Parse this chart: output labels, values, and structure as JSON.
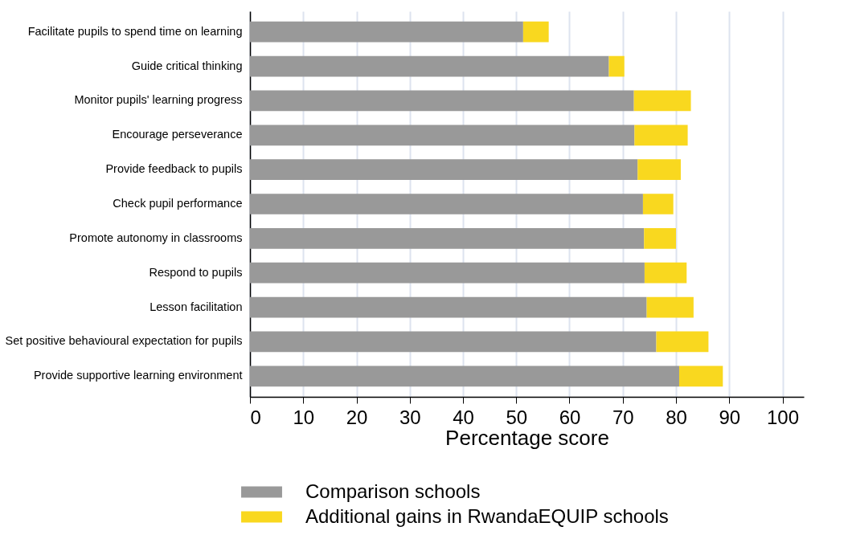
{
  "chart_data": {
    "type": "bar",
    "orientation": "horizontal",
    "stacked": true,
    "categories": [
      "Facilitate pupils to spend time on learning",
      "Guide critical thinking",
      "Monitor pupils' learning progress",
      "Encourage perseverance",
      "Provide feedback to pupils",
      "Check pupil performance",
      "Promote autonomy in classrooms",
      "Respond to pupils",
      "Lesson facilitation",
      "Set positive behavioural expectation for pupils",
      "Provide supportive learning environment"
    ],
    "series": [
      {
        "name": "Comparison schools",
        "color": "#999999",
        "values": [
          51.3,
          67.4,
          72.1,
          72.2,
          72.8,
          73.8,
          74.0,
          74.1,
          74.5,
          76.3,
          80.6
        ]
      },
      {
        "name": "Additional gains in RwandaEQUIP schools",
        "color": "#f9d81f",
        "values": [
          4.8,
          2.9,
          10.7,
          10.0,
          8.1,
          5.7,
          6.0,
          7.9,
          8.8,
          9.8,
          8.2
        ]
      }
    ],
    "xlabel": "Percentage score",
    "xlim": [
      0,
      104
    ],
    "xticks": [
      0,
      10,
      20,
      30,
      40,
      50,
      60,
      70,
      80,
      90,
      100
    ],
    "grid": "x",
    "legend": "bottom"
  }
}
